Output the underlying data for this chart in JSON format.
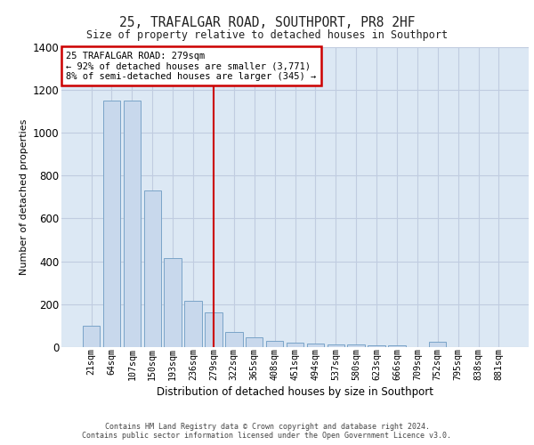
{
  "title": "25, TRAFALGAR ROAD, SOUTHPORT, PR8 2HF",
  "subtitle": "Size of property relative to detached houses in Southport",
  "xlabel": "Distribution of detached houses by size in Southport",
  "ylabel": "Number of detached properties",
  "categories": [
    "21sqm",
    "64sqm",
    "107sqm",
    "150sqm",
    "193sqm",
    "236sqm",
    "279sqm",
    "322sqm",
    "365sqm",
    "408sqm",
    "451sqm",
    "494sqm",
    "537sqm",
    "580sqm",
    "623sqm",
    "666sqm",
    "709sqm",
    "752sqm",
    "795sqm",
    "838sqm",
    "881sqm"
  ],
  "values": [
    100,
    1150,
    1150,
    730,
    415,
    215,
    160,
    70,
    45,
    30,
    20,
    15,
    12,
    12,
    10,
    8,
    0,
    25,
    0,
    0,
    0
  ],
  "bar_color": "#c8d8ec",
  "bar_edge_color": "#7aa4c8",
  "highlight_index": 6,
  "highlight_line_color": "#cc0000",
  "annotation_text": "25 TRAFALGAR ROAD: 279sqm\n← 92% of detached houses are smaller (3,771)\n8% of semi-detached houses are larger (345) →",
  "annotation_box_edgecolor": "#cc0000",
  "ylim_max": 1400,
  "yticks": [
    0,
    200,
    400,
    600,
    800,
    1000,
    1200,
    1400
  ],
  "grid_color": "#c0cce0",
  "plot_bg_color": "#dce8f4",
  "footer_line1": "Contains HM Land Registry data © Crown copyright and database right 2024.",
  "footer_line2": "Contains public sector information licensed under the Open Government Licence v3.0."
}
